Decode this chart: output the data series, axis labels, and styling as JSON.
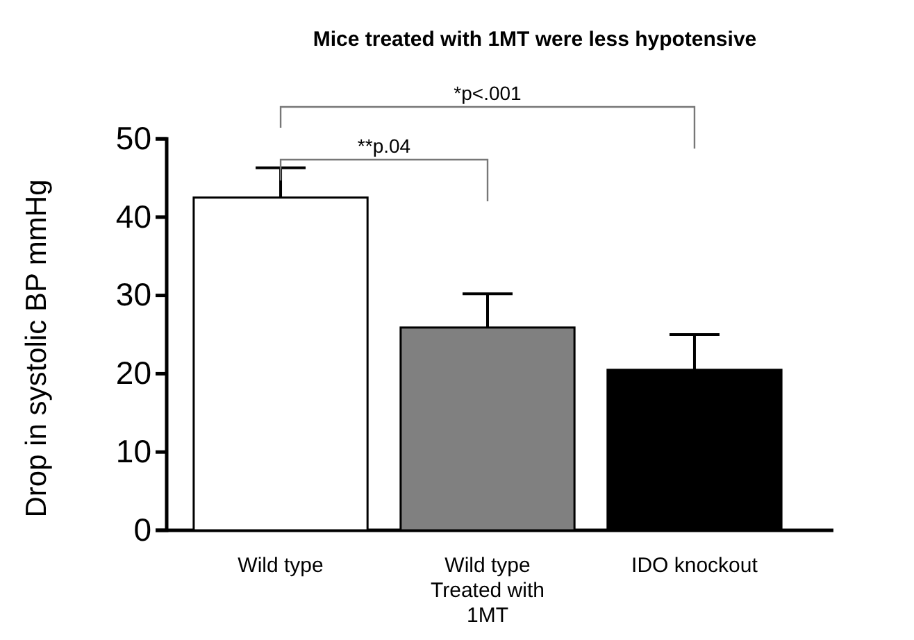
{
  "chart_data": {
    "type": "bar",
    "title": "Mice treated with 1MT were less hypotensive",
    "ylabel": "Drop in systolic BP mmHg",
    "categories": [
      "Wild type",
      "Wild type Treated with 1MT",
      "IDO knockout"
    ],
    "values": [
      42.5,
      25.9,
      20.5
    ],
    "colors": [
      "#ffffff",
      "#808080",
      "#000000"
    ],
    "errors": [
      [
        42.5,
        46.3
      ],
      [
        25.9,
        30.2
      ],
      [
        20.5,
        25
      ]
    ],
    "ylim": [
      0,
      50
    ],
    "yticks": [
      0,
      10,
      20,
      30,
      40,
      50
    ],
    "grid": false,
    "annotations": [
      "*p<.001",
      "**p.04"
    ]
  }
}
